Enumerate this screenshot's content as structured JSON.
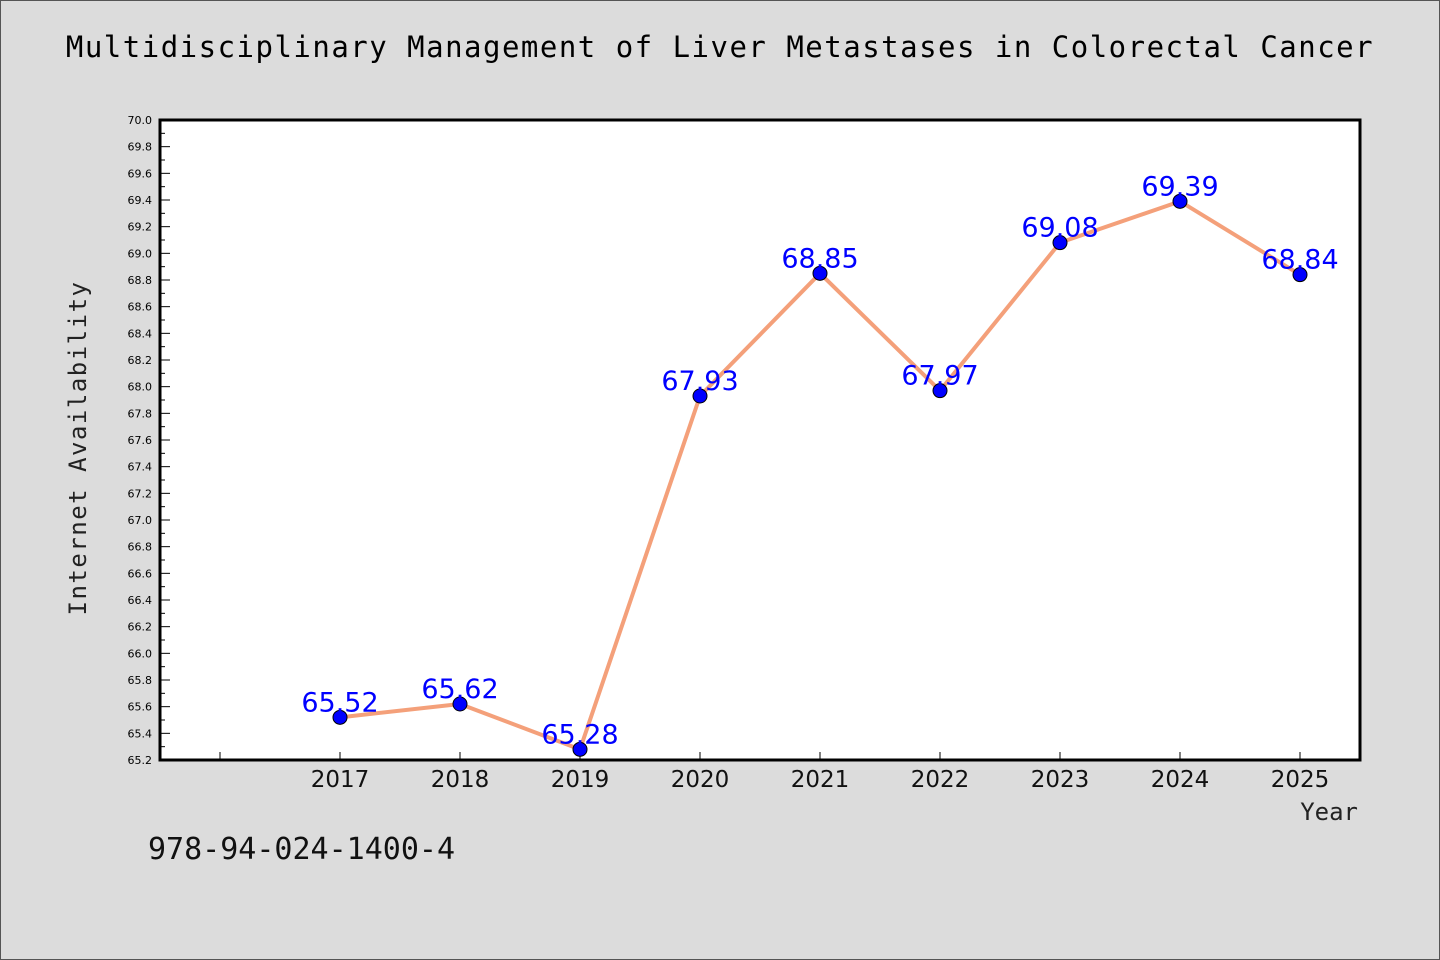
{
  "chart_data": {
    "type": "line",
    "title": "Multidisciplinary Management of Liver Metastases in Colorectal Cancer",
    "xlabel": "Year",
    "ylabel": "Internet Availability",
    "categories": [
      "2017",
      "2018",
      "2019",
      "2020",
      "2021",
      "2022",
      "2023",
      "2024",
      "2025"
    ],
    "series": [
      {
        "values": [
          65.52,
          65.62,
          65.28,
          67.93,
          68.85,
          67.97,
          69.08,
          69.39,
          68.84
        ],
        "data_labels": [
          "65.52",
          "65.62",
          "65.28",
          "67.93",
          "68.85",
          "67.97",
          "69.08",
          "69.39",
          "68.84"
        ]
      }
    ],
    "ylim": [
      65.2,
      70.0
    ],
    "y_ticks": [
      "65.2",
      "65.4",
      "65.6",
      "65.8",
      "66.0",
      "66.2",
      "66.4",
      "66.6",
      "66.8",
      "67.0",
      "67.2",
      "67.4",
      "67.6",
      "67.8",
      "68.0",
      "68.2",
      "68.4",
      "68.6",
      "68.8",
      "69.0",
      "69.2",
      "69.4",
      "69.6",
      "69.8",
      "70.0"
    ],
    "grid": false,
    "colors": {
      "line": "#f4a07a",
      "marker": "#0000ff",
      "label": "#0000ff",
      "plot_bg": "#ffffff",
      "page_bg": "#dcdcdc"
    }
  },
  "footer": {
    "isbn": "978-94-024-1400-4"
  }
}
